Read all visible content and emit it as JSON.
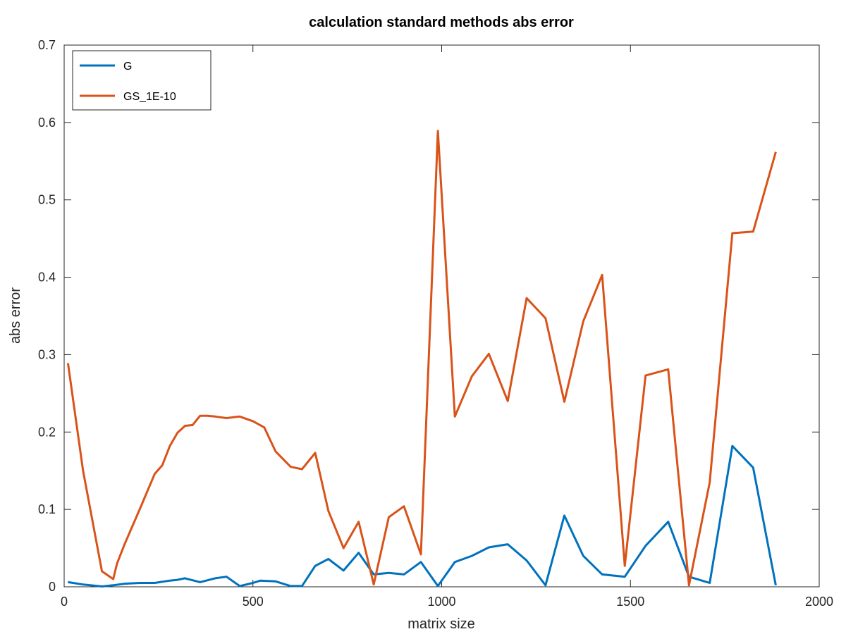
{
  "chart_data": {
    "type": "line",
    "title": "calculation standard methods abs error",
    "xlabel": "matrix size",
    "ylabel": "abs error",
    "xlim": [
      0,
      2000
    ],
    "ylim": [
      0,
      0.7
    ],
    "xticks": [
      0,
      500,
      1000,
      1500,
      2000
    ],
    "yticks": [
      0,
      0.1,
      0.2,
      0.3,
      0.4,
      0.5,
      0.6,
      0.7
    ],
    "grid": false,
    "legend_position": "top-left",
    "series": [
      {
        "name": "G",
        "color": "#0072BD",
        "x": [
          10,
          50,
          100,
          130,
          160,
          200,
          240,
          280,
          300,
          320,
          360,
          400,
          430,
          465,
          500,
          520,
          560,
          600,
          630,
          665,
          700,
          740,
          780,
          820,
          860,
          900,
          945,
          990,
          1035,
          1080,
          1125,
          1175,
          1225,
          1275,
          1325,
          1375,
          1425,
          1485,
          1540,
          1600,
          1655,
          1710,
          1770,
          1825,
          1885
        ],
        "y": [
          0.006,
          0.003,
          0.0005,
          0.002,
          0.004,
          0.005,
          0.005,
          0.008,
          0.009,
          0.011,
          0.006,
          0.011,
          0.013,
          0.001,
          0.005,
          0.008,
          0.007,
          0.001,
          0.001,
          0.027,
          0.036,
          0.021,
          0.044,
          0.016,
          0.018,
          0.016,
          0.032,
          0.001,
          0.032,
          0.04,
          0.051,
          0.055,
          0.034,
          0.002,
          0.092,
          0.04,
          0.016,
          0.013,
          0.053,
          0.084,
          0.013,
          0.005,
          0.182,
          0.154,
          0.002
        ]
      },
      {
        "name": "GS_1E-10",
        "color": "#D95319",
        "x": [
          10,
          50,
          100,
          130,
          140,
          160,
          200,
          240,
          260,
          280,
          300,
          320,
          340,
          360,
          380,
          400,
          430,
          465,
          500,
          530,
          560,
          600,
          630,
          665,
          700,
          740,
          780,
          820,
          860,
          900,
          945,
          990,
          1035,
          1080,
          1125,
          1175,
          1225,
          1275,
          1325,
          1375,
          1425,
          1485,
          1540,
          1600,
          1655,
          1710,
          1770,
          1825,
          1885
        ],
        "y": [
          0.289,
          0.15,
          0.02,
          0.01,
          0.03,
          0.055,
          0.1,
          0.146,
          0.157,
          0.182,
          0.199,
          0.208,
          0.209,
          0.221,
          0.221,
          0.22,
          0.218,
          0.22,
          0.214,
          0.206,
          0.175,
          0.155,
          0.152,
          0.173,
          0.098,
          0.05,
          0.084,
          0.003,
          0.09,
          0.104,
          0.042,
          0.589,
          0.22,
          0.272,
          0.301,
          0.24,
          0.373,
          0.347,
          0.239,
          0.343,
          0.403,
          0.027,
          0.273,
          0.281,
          0.002,
          0.135,
          0.457,
          0.459,
          0.562
        ]
      }
    ]
  }
}
